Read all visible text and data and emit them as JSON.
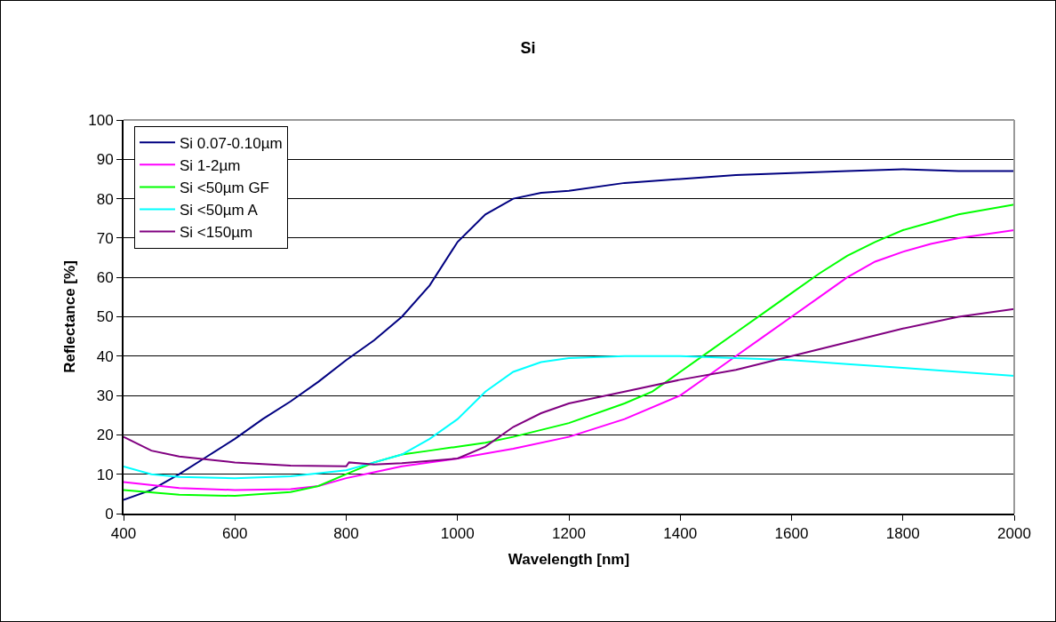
{
  "chart_data": {
    "type": "line",
    "title": "Si",
    "xlabel": "Wavelength [nm]",
    "ylabel": "Reflectance [%]",
    "xlim": [
      400,
      2000
    ],
    "xticks": [
      400,
      600,
      800,
      1000,
      1200,
      1400,
      1600,
      1800,
      2000
    ],
    "ylim": [
      0,
      100
    ],
    "yticks": [
      0,
      10,
      20,
      30,
      40,
      50,
      60,
      70,
      80,
      90,
      100
    ],
    "grid": "y",
    "legend": "top left",
    "marker": "none",
    "line_style": "solid",
    "series": [
      {
        "name": "Si 0.07-0.10µm",
        "color": "#000080",
        "x": [
          400,
          450,
          500,
          550,
          600,
          650,
          700,
          750,
          800,
          850,
          900,
          950,
          1000,
          1050,
          1100,
          1150,
          1200,
          1300,
          1400,
          1500,
          1600,
          1700,
          1800,
          1900,
          2000
        ],
        "values": [
          3.5,
          6,
          10,
          14.5,
          19,
          24,
          28.5,
          33.5,
          39,
          44,
          50,
          58,
          69,
          76,
          80,
          81.5,
          82,
          84,
          85,
          86,
          86.5,
          87,
          87.5,
          87,
          87
        ]
      },
      {
        "name": "Si 1-2µm",
        "color": "#ff00ff",
        "x": [
          400,
          500,
          600,
          700,
          750,
          800,
          850,
          900,
          1000,
          1100,
          1200,
          1300,
          1400,
          1450,
          1500,
          1550,
          1600,
          1650,
          1700,
          1750,
          1800,
          1850,
          1900,
          2000
        ],
        "values": [
          8,
          6.5,
          6,
          6.2,
          7,
          9,
          10.5,
          12,
          14,
          16.5,
          19.5,
          24,
          30,
          35,
          40,
          45,
          50,
          55,
          60,
          64,
          66.5,
          68.5,
          70,
          72
        ]
      },
      {
        "name": "Si <50µm GF",
        "color": "#00ff00",
        "x": [
          400,
          500,
          600,
          700,
          750,
          800,
          850,
          900,
          950,
          1000,
          1050,
          1100,
          1200,
          1300,
          1350,
          1400,
          1450,
          1500,
          1550,
          1600,
          1650,
          1700,
          1750,
          1800,
          1850,
          1900,
          2000
        ],
        "values": [
          6,
          4.8,
          4.5,
          5.5,
          7,
          10,
          13,
          15,
          16,
          17,
          18,
          19.5,
          23,
          28,
          31,
          36,
          41,
          46,
          51,
          56,
          61,
          65.5,
          69,
          72,
          74,
          76,
          78.5
        ]
      },
      {
        "name": "Si <50µm A",
        "color": "#00ffff",
        "x": [
          400,
          450,
          500,
          600,
          700,
          800,
          850,
          900,
          950,
          1000,
          1050,
          1100,
          1150,
          1200,
          1300,
          1400,
          1500,
          1600,
          1700,
          1800,
          1900,
          2000
        ],
        "values": [
          12,
          10,
          9.3,
          9,
          9.5,
          11,
          13,
          15,
          19,
          24,
          31,
          36,
          38.5,
          39.5,
          40,
          40,
          39.5,
          39,
          38,
          37,
          36,
          35
        ]
      },
      {
        "name": "Si <150µm",
        "color": "#800080",
        "x": [
          400,
          450,
          500,
          600,
          700,
          800,
          805,
          850,
          900,
          1000,
          1050,
          1100,
          1150,
          1200,
          1300,
          1400,
          1500,
          1600,
          1700,
          1800,
          1900,
          2000
        ],
        "values": [
          19.5,
          16,
          14.5,
          13,
          12.2,
          12,
          13,
          12.5,
          12.8,
          14,
          17,
          22,
          25.5,
          28,
          31,
          34,
          36.5,
          40,
          43.5,
          47,
          50,
          52
        ]
      }
    ]
  }
}
